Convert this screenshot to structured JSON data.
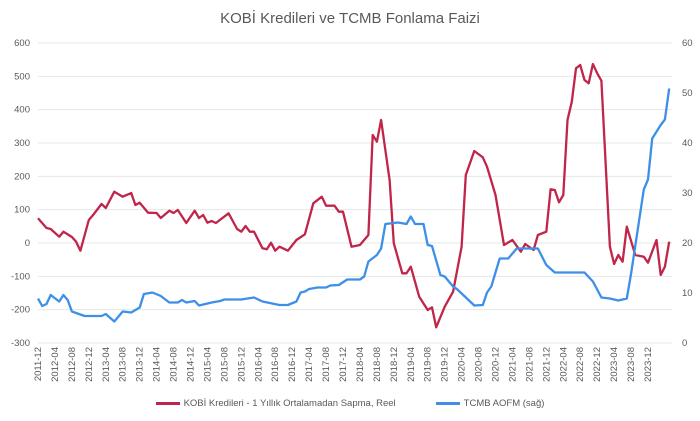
{
  "chart_data": {
    "type": "line",
    "title": "KOBİ Kredileri ve TCMB Fonlama Faizi",
    "y_left": {
      "lim": [
        -300,
        600
      ],
      "ticks": [
        -300,
        -200,
        -100,
        0,
        100,
        200,
        300,
        400,
        500,
        600
      ]
    },
    "y_right": {
      "lim": [
        0,
        60
      ],
      "ticks": [
        0,
        10,
        20,
        30,
        40,
        50,
        60
      ]
    },
    "x_range": [
      "2011-12",
      "2024-05"
    ],
    "x_tick_labels": [
      "2011-12",
      "2012-04",
      "2012-08",
      "2012-12",
      "2013-04",
      "2013-08",
      "2013-12",
      "2014-04",
      "2014-08",
      "2014-12",
      "2015-04",
      "2015-08",
      "2015-12",
      "2016-04",
      "2016-08",
      "2016-12",
      "2017-04",
      "2017-08",
      "2017-12",
      "2018-04",
      "2018-08",
      "2018-12",
      "2019-04",
      "2019-08",
      "2019-12",
      "2020-04",
      "2020-08",
      "2020-12",
      "2021-04",
      "2021-08",
      "2021-12",
      "2022-04",
      "2022-08",
      "2022-12",
      "2023-04",
      "2023-08",
      "2023-12"
    ],
    "grid": true,
    "legend_position": "bottom",
    "series": [
      {
        "name": "KOBİ Kredileri - 1 Yıllık Ortalamadan Sapma, Reel",
        "axis": "left",
        "color": "#C0254A",
        "points": [
          [
            "2011-12",
            74
          ],
          [
            "2012-02",
            45
          ],
          [
            "2012-03",
            42
          ],
          [
            "2012-05",
            19
          ],
          [
            "2012-06",
            34
          ],
          [
            "2012-08",
            18
          ],
          [
            "2012-09",
            4
          ],
          [
            "2012-10",
            -23
          ],
          [
            "2012-12",
            69
          ],
          [
            "2013-01",
            84
          ],
          [
            "2013-03",
            117
          ],
          [
            "2013-04",
            105
          ],
          [
            "2013-06",
            154
          ],
          [
            "2013-08",
            139
          ],
          [
            "2013-10",
            150
          ],
          [
            "2013-11",
            114
          ],
          [
            "2013-12",
            121
          ],
          [
            "2014-02",
            91
          ],
          [
            "2014-04",
            90
          ],
          [
            "2014-05",
            75
          ],
          [
            "2014-07",
            97
          ],
          [
            "2014-08",
            90
          ],
          [
            "2014-09",
            99
          ],
          [
            "2014-11",
            60
          ],
          [
            "2015-01",
            97
          ],
          [
            "2015-02",
            75
          ],
          [
            "2015-03",
            84
          ],
          [
            "2015-04",
            61
          ],
          [
            "2015-05",
            66
          ],
          [
            "2015-06",
            60
          ],
          [
            "2015-09",
            89
          ],
          [
            "2015-11",
            42
          ],
          [
            "2015-12",
            34
          ],
          [
            "2016-01",
            51
          ],
          [
            "2016-02",
            34
          ],
          [
            "2016-03",
            34
          ],
          [
            "2016-05",
            -16
          ],
          [
            "2016-06",
            -19
          ],
          [
            "2016-07",
            1
          ],
          [
            "2016-08",
            -23
          ],
          [
            "2016-09",
            -11
          ],
          [
            "2016-11",
            -23
          ],
          [
            "2017-01",
            9
          ],
          [
            "2017-03",
            26
          ],
          [
            "2017-05",
            119
          ],
          [
            "2017-07",
            139
          ],
          [
            "2017-08",
            112
          ],
          [
            "2017-10",
            112
          ],
          [
            "2017-11",
            94
          ],
          [
            "2017-12",
            94
          ],
          [
            "2018-02",
            -11
          ],
          [
            "2018-04",
            -6
          ],
          [
            "2018-06",
            24
          ],
          [
            "2018-07",
            324
          ],
          [
            "2018-08",
            304
          ],
          [
            "2018-09",
            369
          ],
          [
            "2018-11",
            189
          ],
          [
            "2018-12",
            -1
          ],
          [
            "2019-02",
            -91
          ],
          [
            "2019-03",
            -91
          ],
          [
            "2019-04",
            -71
          ],
          [
            "2019-06",
            -161
          ],
          [
            "2019-08",
            -201
          ],
          [
            "2019-09",
            -193
          ],
          [
            "2019-10",
            -253
          ],
          [
            "2019-12",
            -191
          ],
          [
            "2020-02",
            -146
          ],
          [
            "2020-04",
            -11
          ],
          [
            "2020-05",
            204
          ],
          [
            "2020-07",
            276
          ],
          [
            "2020-09",
            257
          ],
          [
            "2020-10",
            229
          ],
          [
            "2020-12",
            144
          ],
          [
            "2021-02",
            -6
          ],
          [
            "2021-04",
            9
          ],
          [
            "2021-06",
            -26
          ],
          [
            "2021-07",
            -3
          ],
          [
            "2021-09",
            -21
          ],
          [
            "2021-10",
            24
          ],
          [
            "2021-12",
            34
          ],
          [
            "2022-01",
            161
          ],
          [
            "2022-02",
            159
          ],
          [
            "2022-03",
            122
          ],
          [
            "2022-04",
            144
          ],
          [
            "2022-05",
            369
          ],
          [
            "2022-06",
            424
          ],
          [
            "2022-07",
            524
          ],
          [
            "2022-08",
            534
          ],
          [
            "2022-09",
            489
          ],
          [
            "2022-10",
            479
          ],
          [
            "2022-11",
            537
          ],
          [
            "2022-12",
            509
          ],
          [
            "2023-01",
            487
          ],
          [
            "2023-03",
            -11
          ],
          [
            "2023-04",
            -63
          ],
          [
            "2023-05",
            -36
          ],
          [
            "2023-06",
            -56
          ],
          [
            "2023-07",
            49
          ],
          [
            "2023-09",
            -36
          ],
          [
            "2023-11",
            -41
          ],
          [
            "2023-12",
            -59
          ],
          [
            "2024-02",
            9
          ],
          [
            "2024-03",
            -96
          ],
          [
            "2024-04",
            -71
          ],
          [
            "2024-05",
            4
          ]
        ]
      },
      {
        "name": "TCMB AOFM (sağ)",
        "axis": "right",
        "color": "#3D8FE8",
        "points": [
          [
            "2011-12",
            8.9
          ],
          [
            "2012-01",
            7.4
          ],
          [
            "2012-02",
            7.8
          ],
          [
            "2012-03",
            9.6
          ],
          [
            "2012-05",
            8.3
          ],
          [
            "2012-06",
            9.6
          ],
          [
            "2012-07",
            8.6
          ],
          [
            "2012-08",
            6.3
          ],
          [
            "2012-11",
            5.4
          ],
          [
            "2013-03",
            5.4
          ],
          [
            "2013-04",
            5.8
          ],
          [
            "2013-06",
            4.3
          ],
          [
            "2013-08",
            6.3
          ],
          [
            "2013-10",
            6.1
          ],
          [
            "2013-12",
            7.1
          ],
          [
            "2014-01",
            9.8
          ],
          [
            "2014-03",
            10.1
          ],
          [
            "2014-05",
            9.4
          ],
          [
            "2014-07",
            8.1
          ],
          [
            "2014-09",
            8.1
          ],
          [
            "2014-10",
            8.6
          ],
          [
            "2014-11",
            8.1
          ],
          [
            "2015-01",
            8.4
          ],
          [
            "2015-02",
            7.5
          ],
          [
            "2015-05",
            8.1
          ],
          [
            "2015-07",
            8.4
          ],
          [
            "2015-08",
            8.7
          ],
          [
            "2015-12",
            8.7
          ],
          [
            "2016-03",
            9.1
          ],
          [
            "2016-05",
            8.3
          ],
          [
            "2016-09",
            7.6
          ],
          [
            "2016-11",
            7.6
          ],
          [
            "2017-01",
            8.3
          ],
          [
            "2017-02",
            10.1
          ],
          [
            "2017-03",
            10.3
          ],
          [
            "2017-04",
            10.8
          ],
          [
            "2017-06",
            11.1
          ],
          [
            "2017-08",
            11.1
          ],
          [
            "2017-09",
            11.5
          ],
          [
            "2017-11",
            11.6
          ],
          [
            "2018-01",
            12.7
          ],
          [
            "2018-04",
            12.7
          ],
          [
            "2018-05",
            13.3
          ],
          [
            "2018-06",
            16.3
          ],
          [
            "2018-08",
            17.6
          ],
          [
            "2018-09",
            18.9
          ],
          [
            "2018-10",
            23.8
          ],
          [
            "2019-01",
            24.1
          ],
          [
            "2019-03",
            23.8
          ],
          [
            "2019-04",
            25.3
          ],
          [
            "2019-05",
            23.8
          ],
          [
            "2019-07",
            23.8
          ],
          [
            "2019-08",
            19.6
          ],
          [
            "2019-09",
            19.4
          ],
          [
            "2019-11",
            13.6
          ],
          [
            "2019-12",
            13.3
          ],
          [
            "2020-02",
            11.3
          ],
          [
            "2020-03",
            10.7
          ],
          [
            "2020-06",
            8.3
          ],
          [
            "2020-07",
            7.5
          ],
          [
            "2020-09",
            7.6
          ],
          [
            "2020-10",
            10.1
          ],
          [
            "2020-11",
            11.3
          ],
          [
            "2021-01",
            16.9
          ],
          [
            "2021-03",
            16.9
          ],
          [
            "2021-05",
            18.9
          ],
          [
            "2021-10",
            18.9
          ],
          [
            "2021-12",
            15.6
          ],
          [
            "2022-02",
            14.1
          ],
          [
            "2022-09",
            14.1
          ],
          [
            "2022-11",
            12.3
          ],
          [
            "2023-01",
            9.1
          ],
          [
            "2023-03",
            8.9
          ],
          [
            "2023-05",
            8.5
          ],
          [
            "2023-07",
            8.9
          ],
          [
            "2023-08",
            13.9
          ],
          [
            "2023-11",
            30.7
          ],
          [
            "2023-12",
            32.7
          ],
          [
            "2024-01",
            40.9
          ],
          [
            "2024-03",
            43.6
          ],
          [
            "2024-04",
            44.7
          ],
          [
            "2024-05",
            50.9
          ]
        ]
      }
    ]
  }
}
